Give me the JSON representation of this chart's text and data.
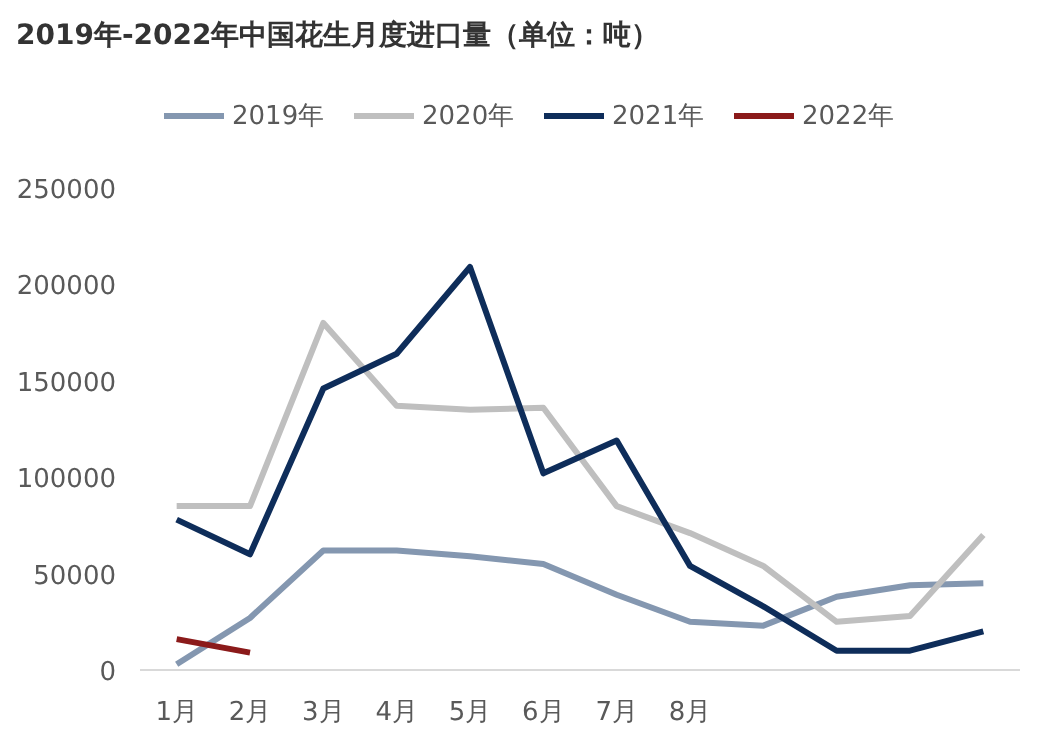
{
  "chart_data": {
    "type": "line",
    "title": "2019年-2022年中国花生月度进口量（单位：吨）",
    "categories": [
      "1月",
      "2月",
      "3月",
      "4月",
      "5月",
      "6月",
      "7月",
      "8月",
      null,
      null,
      null,
      null
    ],
    "series": [
      {
        "name": "2019年",
        "color": "#8497b0",
        "values": [
          3000,
          27000,
          62000,
          62000,
          59000,
          55000,
          39000,
          25000,
          23000,
          38000,
          44000,
          45000
        ]
      },
      {
        "name": "2020年",
        "color": "#bfbfbf",
        "values": [
          85000,
          85000,
          180000,
          137000,
          135000,
          136000,
          85000,
          71000,
          54000,
          25000,
          28000,
          70000
        ]
      },
      {
        "name": "2021年",
        "color": "#0e2d5a",
        "values": [
          78000,
          60000,
          146000,
          164000,
          209000,
          102000,
          119000,
          54000,
          33000,
          10000,
          10000,
          20000
        ]
      },
      {
        "name": "2022年",
        "color": "#8b1a1a",
        "values": [
          16000,
          9000,
          null,
          null,
          null,
          null,
          null,
          null,
          null,
          null,
          null,
          null
        ]
      }
    ],
    "ylim": [
      0,
      250000
    ],
    "yticks": [
      0,
      50000,
      100000,
      150000,
      200000,
      250000
    ],
    "grid": false,
    "legend": "top",
    "marker": "none",
    "line_style": "solid"
  }
}
